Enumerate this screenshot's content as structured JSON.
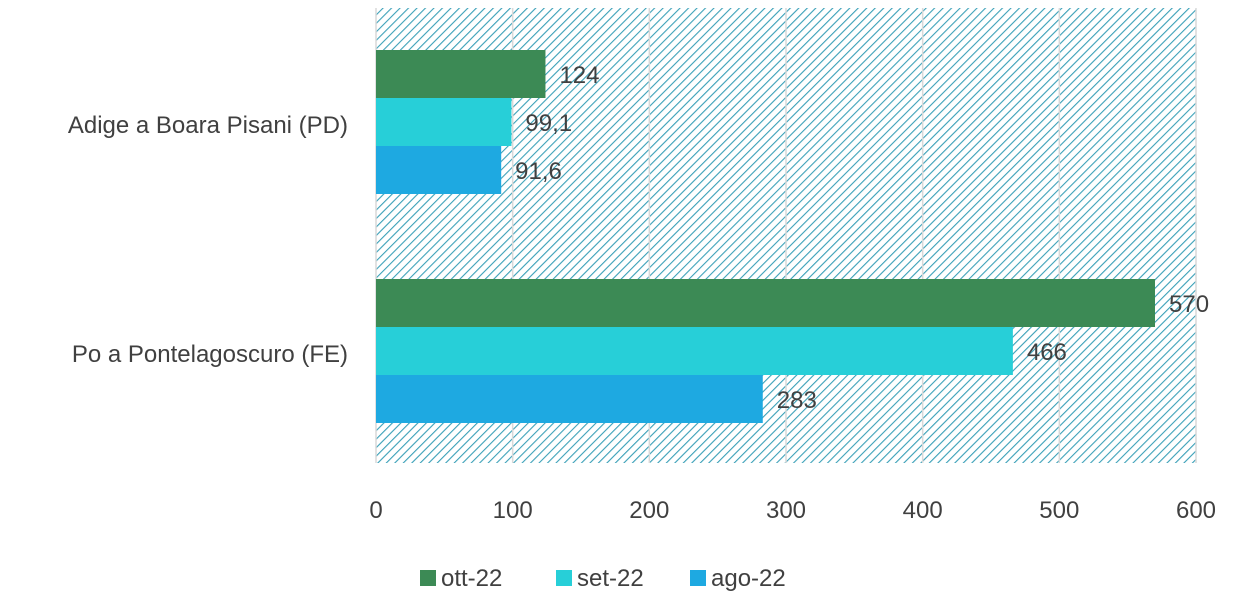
{
  "chart_data": {
    "type": "bar",
    "orientation": "horizontal",
    "categories": [
      "Adige a Boara Pisani (PD)",
      "Po a Pontelagoscuro (FE)"
    ],
    "series": [
      {
        "name": "ott-22",
        "color": "#3c8a55",
        "values": [
          124,
          570
        ],
        "labels": [
          "124",
          "570"
        ]
      },
      {
        "name": "set-22",
        "color": "#27cfd8",
        "values": [
          99.1,
          466
        ],
        "labels": [
          "99,1",
          "466"
        ]
      },
      {
        "name": "ago-22",
        "color": "#1ea9e1",
        "values": [
          91.6,
          283
        ],
        "labels": [
          "91,6",
          "283"
        ]
      }
    ],
    "xlim": [
      0,
      600
    ],
    "xticks": [
      "0",
      "100",
      "200",
      "300",
      "400",
      "500",
      "600"
    ],
    "grid": true,
    "legend_position": "bottom",
    "plot_background": "hatched",
    "hatch_color": "#3aa0b8"
  }
}
